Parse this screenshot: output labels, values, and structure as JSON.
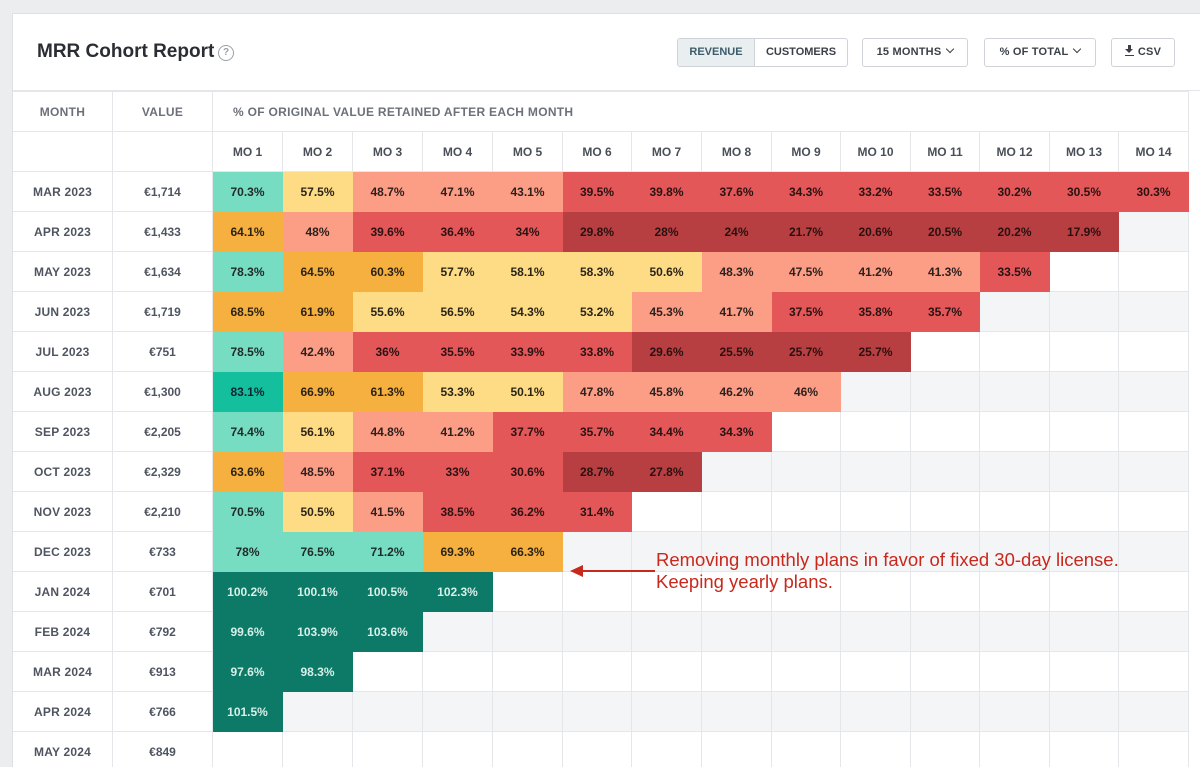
{
  "header": {
    "title": "MRR Cohort Report",
    "help_glyph": "?",
    "revenue_label": "REVENUE",
    "customers_label": "CUSTOMERS",
    "months_label": "15 MONTHS",
    "view_label": "% OF TOTAL",
    "csv_label": "CSV"
  },
  "table": {
    "month_header": "MONTH",
    "value_header": "VALUE",
    "pct_header": "% OF ORIGINAL VALUE RETAINED AFTER EACH MONTH",
    "columns": [
      "MO 1",
      "MO 2",
      "MO 3",
      "MO 4",
      "MO 5",
      "MO 6",
      "MO 7",
      "MO 8",
      "MO 9",
      "MO 10",
      "MO 11",
      "MO 12",
      "MO 13",
      "MO 14"
    ],
    "rows": [
      {
        "month": "MAR 2023",
        "value": "€1,714",
        "cells": [
          "70.3%",
          "57.5%",
          "48.7%",
          "47.1%",
          "43.1%",
          "39.5%",
          "39.8%",
          "37.6%",
          "34.3%",
          "33.2%",
          "33.5%",
          "30.2%",
          "30.5%",
          "30.3%"
        ]
      },
      {
        "month": "APR 2023",
        "value": "€1,433",
        "cells": [
          "64.1%",
          "48%",
          "39.6%",
          "36.4%",
          "34%",
          "29.8%",
          "28%",
          "24%",
          "21.7%",
          "20.6%",
          "20.5%",
          "20.2%",
          "17.9%"
        ]
      },
      {
        "month": "MAY 2023",
        "value": "€1,634",
        "cells": [
          "78.3%",
          "64.5%",
          "60.3%",
          "57.7%",
          "58.1%",
          "58.3%",
          "50.6%",
          "48.3%",
          "47.5%",
          "41.2%",
          "41.3%",
          "33.5%"
        ]
      },
      {
        "month": "JUN 2023",
        "value": "€1,719",
        "cells": [
          "68.5%",
          "61.9%",
          "55.6%",
          "56.5%",
          "54.3%",
          "53.2%",
          "45.3%",
          "41.7%",
          "37.5%",
          "35.8%",
          "35.7%"
        ]
      },
      {
        "month": "JUL 2023",
        "value": "€751",
        "cells": [
          "78.5%",
          "42.4%",
          "36%",
          "35.5%",
          "33.9%",
          "33.8%",
          "29.6%",
          "25.5%",
          "25.7%",
          "25.7%"
        ]
      },
      {
        "month": "AUG 2023",
        "value": "€1,300",
        "cells": [
          "83.1%",
          "66.9%",
          "61.3%",
          "53.3%",
          "50.1%",
          "47.8%",
          "45.8%",
          "46.2%",
          "46%"
        ]
      },
      {
        "month": "SEP 2023",
        "value": "€2,205",
        "cells": [
          "74.4%",
          "56.1%",
          "44.8%",
          "41.2%",
          "37.7%",
          "35.7%",
          "34.4%",
          "34.3%"
        ]
      },
      {
        "month": "OCT 2023",
        "value": "€2,329",
        "cells": [
          "63.6%",
          "48.5%",
          "37.1%",
          "33%",
          "30.6%",
          "28.7%",
          "27.8%"
        ]
      },
      {
        "month": "NOV 2023",
        "value": "€2,210",
        "cells": [
          "70.5%",
          "50.5%",
          "41.5%",
          "38.5%",
          "36.2%",
          "31.4%"
        ]
      },
      {
        "month": "DEC 2023",
        "value": "€733",
        "cells": [
          "78%",
          "76.5%",
          "71.2%",
          "69.3%",
          "66.3%"
        ]
      },
      {
        "month": "JAN 2024",
        "value": "€701",
        "cells": [
          "100.2%",
          "100.1%",
          "100.5%",
          "102.3%"
        ]
      },
      {
        "month": "FEB 2024",
        "value": "€792",
        "cells": [
          "99.6%",
          "103.9%",
          "103.6%"
        ]
      },
      {
        "month": "MAR 2024",
        "value": "€913",
        "cells": [
          "97.6%",
          "98.3%"
        ]
      },
      {
        "month": "APR 2024",
        "value": "€766",
        "cells": [
          "101.5%"
        ]
      },
      {
        "month": "MAY 2024",
        "value": "€849",
        "cells": []
      }
    ]
  },
  "colors": {
    "c100": "#0c7a67",
    "c80": "#13bf9d",
    "c70": "#76dcc2",
    "c60": "#f5b040",
    "c50": "#fedc86",
    "c40": "#fc9d86",
    "c30": "#e35758",
    "c20": "#b83f41"
  },
  "annotation": {
    "line1": "Removing monthly plans in favor of fixed 30-day license.",
    "line2": "Keeping yearly plans."
  }
}
